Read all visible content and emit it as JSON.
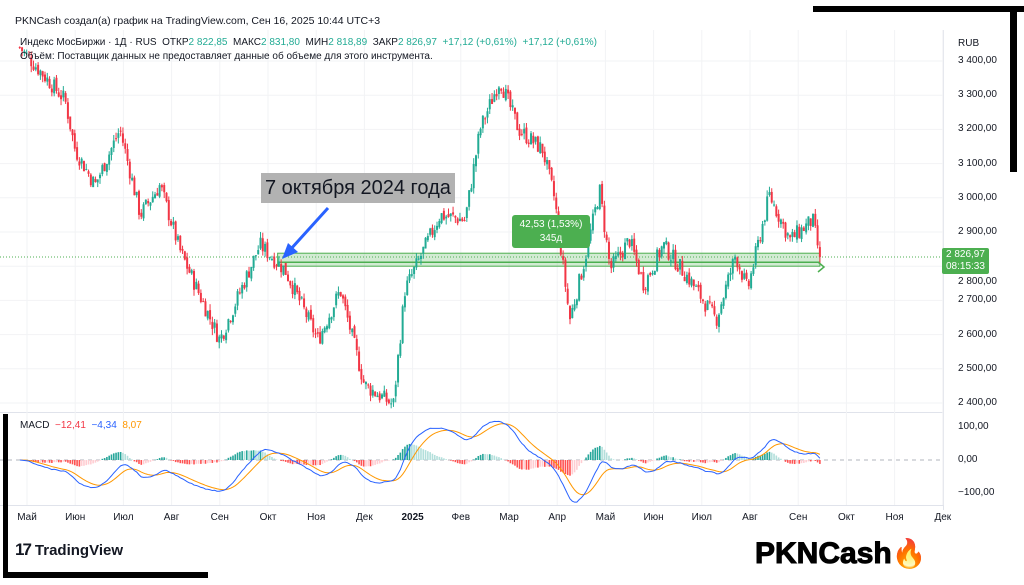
{
  "header": {
    "credit": "PKNCash создал(а) график на TradingView.com, Сен 16, 2025 10:44 UTC+3",
    "symbol": "Индекс МосБиржи · 1Д · RUS",
    "open_label": "ОТКР",
    "open": "2 822,85",
    "high_label": "МАКС",
    "high": "2 831,80",
    "low_label": "МИН",
    "low": "2 818,89",
    "close_label": "ЗАКР",
    "close": "2 826,97",
    "change1": "+17,12 (+0,61%)",
    "change2": "+17,12 (+0,61%)",
    "volume_note": "Объём: Поставщик данных не предоставляет данные об объеме для этого инструмента."
  },
  "currency": "RUB",
  "last_price": {
    "value": "2 826,97",
    "countdown": "08:15:33"
  },
  "annotation": {
    "text": "7 октября 2024 года"
  },
  "measure": {
    "change": "42,53 (1,53%)",
    "duration": "345д"
  },
  "macd": {
    "label": "MACD",
    "hist": "−12,41",
    "macd": "−4,34",
    "signal": "8,07"
  },
  "colors": {
    "up": "#22ab94",
    "down": "#f23645",
    "macd": "#2962ff",
    "signal": "#ff9800",
    "measure": "#4caf50",
    "arrow": "#2962ff"
  },
  "branding": {
    "tv": "TradingView",
    "watermark": "PKNCash"
  },
  "chart_data": {
    "type": "candlestick",
    "price_axis": {
      "labels": [
        "3 400,00",
        "3 300,00",
        "3 200,00",
        "3 100,00",
        "3 000,00",
        "2 900,00",
        "2 800,00",
        "2 700,00",
        "2 600,00",
        "2 500,00",
        "2 400,00"
      ],
      "values": [
        3400,
        3300,
        3200,
        3100,
        3000,
        2900,
        2800,
        2700,
        2600,
        2500,
        2400
      ],
      "ylim": [
        2340,
        3520
      ]
    },
    "macd_axis": {
      "labels": [
        "100,00",
        "0,00",
        "−100,00"
      ],
      "values": [
        100,
        0,
        -100
      ]
    },
    "time_axis": {
      "labels": [
        "Май",
        "Июн",
        "Июл",
        "Авг",
        "Сен",
        "Окт",
        "Ноя",
        "Дек",
        "2025",
        "Фев",
        "Мар",
        "Апр",
        "Май",
        "Июн",
        "Июл",
        "Авг",
        "Сен",
        "Окт",
        "Ноя",
        "Дек"
      ],
      "months_from_may_2024": [
        0,
        1,
        2,
        3,
        4,
        5,
        6,
        7,
        8,
        9,
        10,
        11,
        12,
        13,
        14,
        15,
        16,
        17,
        18,
        19
      ]
    },
    "close_path_months": [
      [
        -0.15,
        3440
      ],
      [
        0.79,
        3286
      ],
      [
        1.0,
        3140
      ],
      [
        1.41,
        3037
      ],
      [
        1.93,
        3200
      ],
      [
        2.35,
        2950
      ],
      [
        2.76,
        3037
      ],
      [
        3.17,
        2847
      ],
      [
        4.0,
        2584
      ],
      [
        4.83,
        2862
      ],
      [
        5.35,
        2790
      ],
      [
        6.04,
        2584
      ],
      [
        6.5,
        2730
      ],
      [
        7.0,
        2453
      ],
      [
        7.6,
        2394
      ],
      [
        7.84,
        2730
      ],
      [
        8.57,
        2950
      ],
      [
        9.09,
        2935
      ],
      [
        9.4,
        3200
      ],
      [
        9.81,
        3345
      ],
      [
        10.2,
        3200
      ],
      [
        10.7,
        3140
      ],
      [
        10.95,
        2994
      ],
      [
        11.26,
        2643
      ],
      [
        11.57,
        2818
      ],
      [
        11.88,
        3023
      ],
      [
        12.1,
        2790
      ],
      [
        12.5,
        2877
      ],
      [
        12.8,
        2745
      ],
      [
        13.2,
        2862
      ],
      [
        13.75,
        2760
      ],
      [
        14.3,
        2643
      ],
      [
        14.7,
        2833
      ],
      [
        14.95,
        2730
      ],
      [
        15.4,
        3008
      ],
      [
        15.83,
        2877
      ],
      [
        16.3,
        2935
      ],
      [
        16.45,
        2826.97
      ]
    ],
    "zone": {
      "from_month": 5.2,
      "to_month": 16.45,
      "low": 2800,
      "high": 2838
    },
    "last": 2826.97
  }
}
